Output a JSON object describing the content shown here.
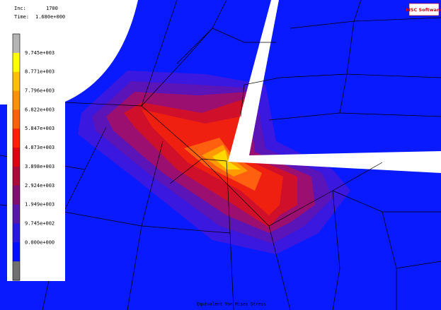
{
  "header": {
    "inc_label": "Inc:",
    "inc": "1700",
    "time_label": "Time:",
    "time": "1.680e+000"
  },
  "logo": "MSC Software",
  "legend": {
    "labels": [
      "9.745e+003",
      "8.771e+003",
      "7.796e+003",
      "6.822e+003",
      "5.847e+003",
      "4.873e+003",
      "3.898e+003",
      "2.924e+003",
      "1.949e+003",
      "9.745e+002",
      "0.000e+000"
    ]
  },
  "footer": {
    "quantity": "Equivalent Von Mises Stress"
  }
}
